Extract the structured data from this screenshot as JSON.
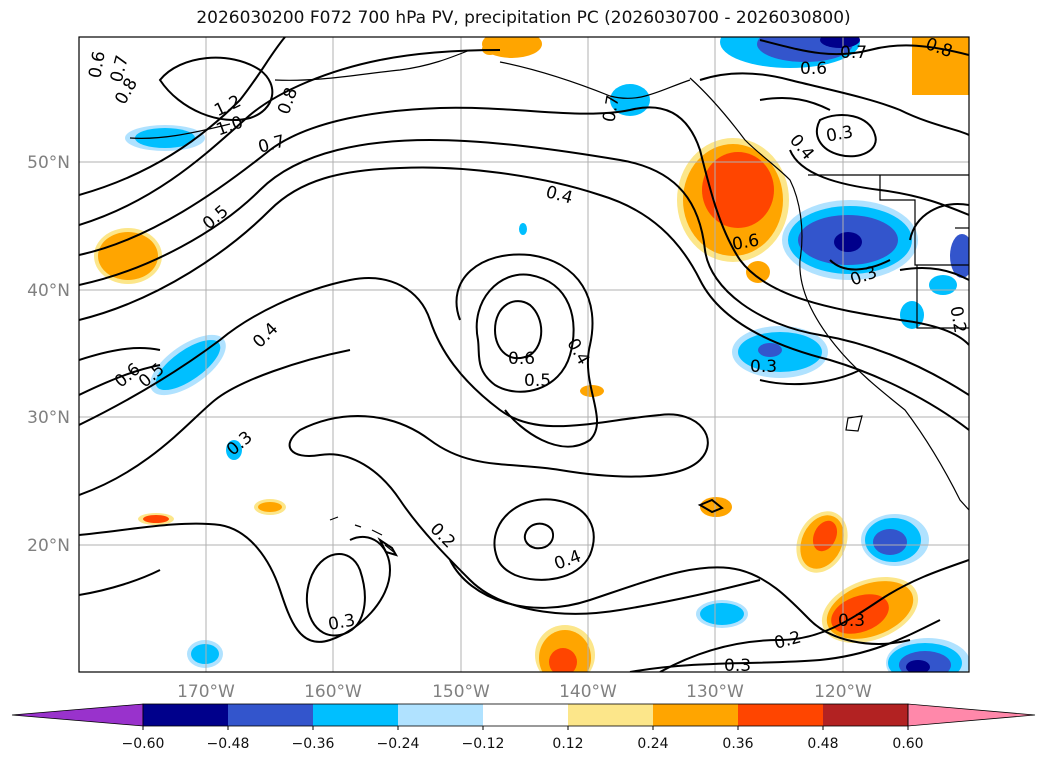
{
  "title": "2026030200 F072 700 hPa PV, precipitation PC (2026030700 - 2026030800)",
  "map": {
    "latitude_labels": [
      "50°N",
      "40°N",
      "30°N",
      "20°N"
    ],
    "longitude_labels": [
      "170°W",
      "160°W",
      "150°W",
      "140°W",
      "130°W",
      "120°W"
    ]
  },
  "contour_labels": [
    {
      "text": "0.6"
    },
    {
      "text": "0.7"
    },
    {
      "text": "0.8"
    },
    {
      "text": "1.2"
    },
    {
      "text": "1.0"
    },
    {
      "text": "0.8"
    },
    {
      "text": "0.7"
    },
    {
      "text": "0.5"
    },
    {
      "text": "0.7"
    },
    {
      "text": "0.6"
    },
    {
      "text": "0.7"
    },
    {
      "text": "0.8"
    },
    {
      "text": "0.4"
    },
    {
      "text": "0.3"
    },
    {
      "text": "0.4"
    },
    {
      "text": "0.6"
    },
    {
      "text": "0.3"
    },
    {
      "text": "0.4"
    },
    {
      "text": "0.6"
    },
    {
      "text": "0.5"
    },
    {
      "text": "0.4"
    },
    {
      "text": "0.5"
    },
    {
      "text": "0.6"
    },
    {
      "text": "0.3"
    },
    {
      "text": "0.3"
    },
    {
      "text": "0.2"
    },
    {
      "text": "0.4"
    },
    {
      "text": "0.3"
    },
    {
      "text": "0.2"
    },
    {
      "text": "0.3"
    },
    {
      "text": "0.3"
    },
    {
      "text": "0.2"
    }
  ],
  "colorbar": {
    "ticks": [
      "−0.60",
      "−0.48",
      "−0.36",
      "−0.24",
      "−0.12",
      "0.12",
      "0.24",
      "0.36",
      "0.48",
      "0.60"
    ],
    "colors": [
      "#9932cc",
      "#00008b",
      "#3355cc",
      "#00bfff",
      "#b0e2ff",
      "#ffffff",
      "#fce68a",
      "#ffa500",
      "#ff4500",
      "#b22222",
      "#ff88aa"
    ]
  }
}
